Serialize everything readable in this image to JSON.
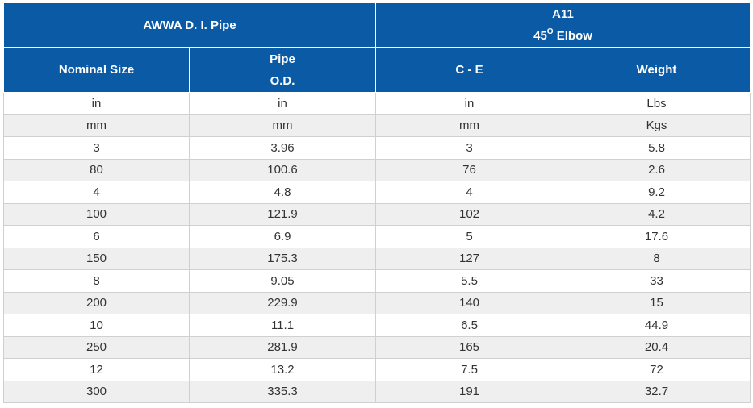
{
  "header": {
    "group_left": "AWWA D. I. Pipe",
    "group_right_line1": "A11",
    "group_right_line2_num": "45",
    "group_right_line2_sup": "O",
    "group_right_line2_text": " Elbow",
    "col_nominal_size": "Nominal Size",
    "col_pipe_line1": "Pipe",
    "col_pipe_line2": "O.D.",
    "col_ce": "C - E",
    "col_weight": "Weight"
  },
  "rows": [
    [
      "in",
      "in",
      "in",
      "Lbs"
    ],
    [
      "mm",
      "mm",
      "mm",
      "Kgs"
    ],
    [
      "3",
      "3.96",
      "3",
      "5.8"
    ],
    [
      "80",
      "100.6",
      "76",
      "2.6"
    ],
    [
      "4",
      "4.8",
      "4",
      "9.2"
    ],
    [
      "100",
      "121.9",
      "102",
      "4.2"
    ],
    [
      "6",
      "6.9",
      "5",
      "17.6"
    ],
    [
      "150",
      "175.3",
      "127",
      "8"
    ],
    [
      "8",
      "9.05",
      "5.5",
      "33"
    ],
    [
      "200",
      "229.9",
      "140",
      "15"
    ],
    [
      "10",
      "11.1",
      "6.5",
      "44.9"
    ],
    [
      "250",
      "281.9",
      "165",
      "20.4"
    ],
    [
      "12",
      "13.2",
      "7.5",
      "72"
    ],
    [
      "300",
      "335.3",
      "191",
      "32.7"
    ]
  ],
  "colors": {
    "header_bg": "#0b5aa6",
    "header_text": "#ffffff",
    "stripe": "#efefef"
  }
}
